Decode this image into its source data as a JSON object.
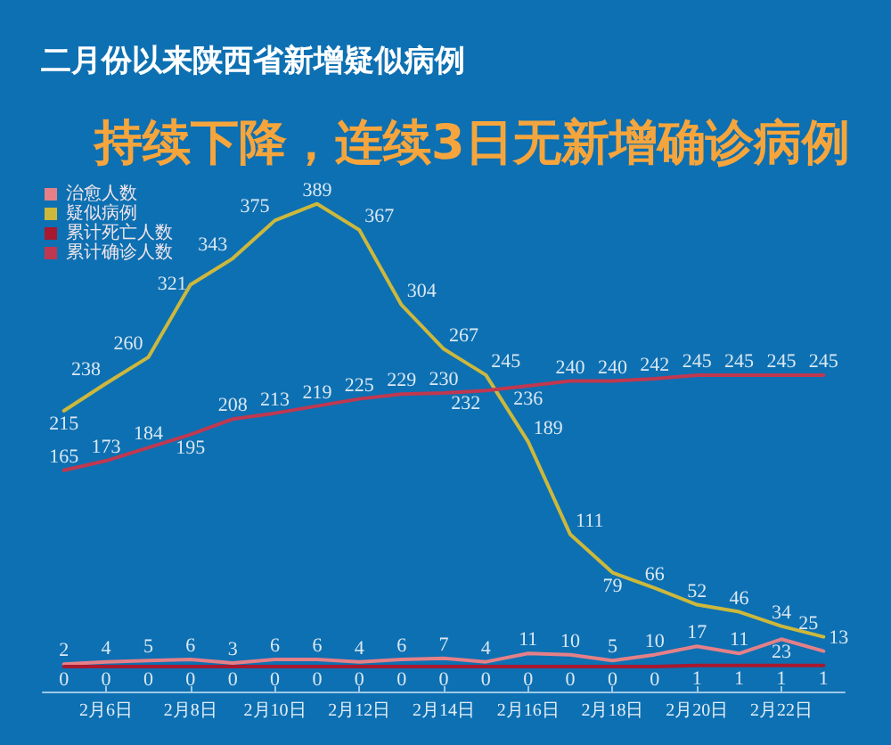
{
  "chart_data": {
    "type": "line",
    "title": "二月份以来陕西省新增疑似病例",
    "subtitle": "持续下降，连续3日无新增确诊病例",
    "categories": [
      null,
      "2月6日",
      null,
      "2月8日",
      null,
      "2月10日",
      null,
      "2月12日",
      null,
      "2月14日",
      null,
      "2月16日",
      null,
      "2月18日",
      null,
      "2月20日",
      null,
      "2月22日",
      null
    ],
    "series": [
      {
        "name": "治愈人数",
        "color": "#e58088",
        "values": [
          2,
          4,
          5,
          6,
          3,
          6,
          6,
          4,
          6,
          7,
          4,
          11,
          10,
          5,
          10,
          17,
          11,
          23,
          13
        ]
      },
      {
        "name": "疑似病例",
        "color": "#cdb83c",
        "values": [
          215,
          238,
          260,
          321,
          343,
          375,
          389,
          367,
          304,
          267,
          245,
          189,
          111,
          79,
          66,
          52,
          46,
          34,
          25
        ]
      },
      {
        "name": "累计死亡人数",
        "color": "#a8182e",
        "values": [
          0,
          0,
          0,
          0,
          0,
          0,
          0,
          0,
          0,
          0,
          0,
          0,
          0,
          0,
          0,
          1,
          1,
          1,
          1
        ]
      },
      {
        "name": "累计确诊人数",
        "color": "#c03850",
        "values": [
          165,
          173,
          184,
          195,
          208,
          213,
          219,
          225,
          229,
          230,
          232,
          236,
          240,
          240,
          242,
          245,
          245,
          245,
          245
        ]
      }
    ],
    "data_labels": true,
    "legend": "top left",
    "marker": "none",
    "line_style": "solid",
    "tick_labels": "x"
  }
}
